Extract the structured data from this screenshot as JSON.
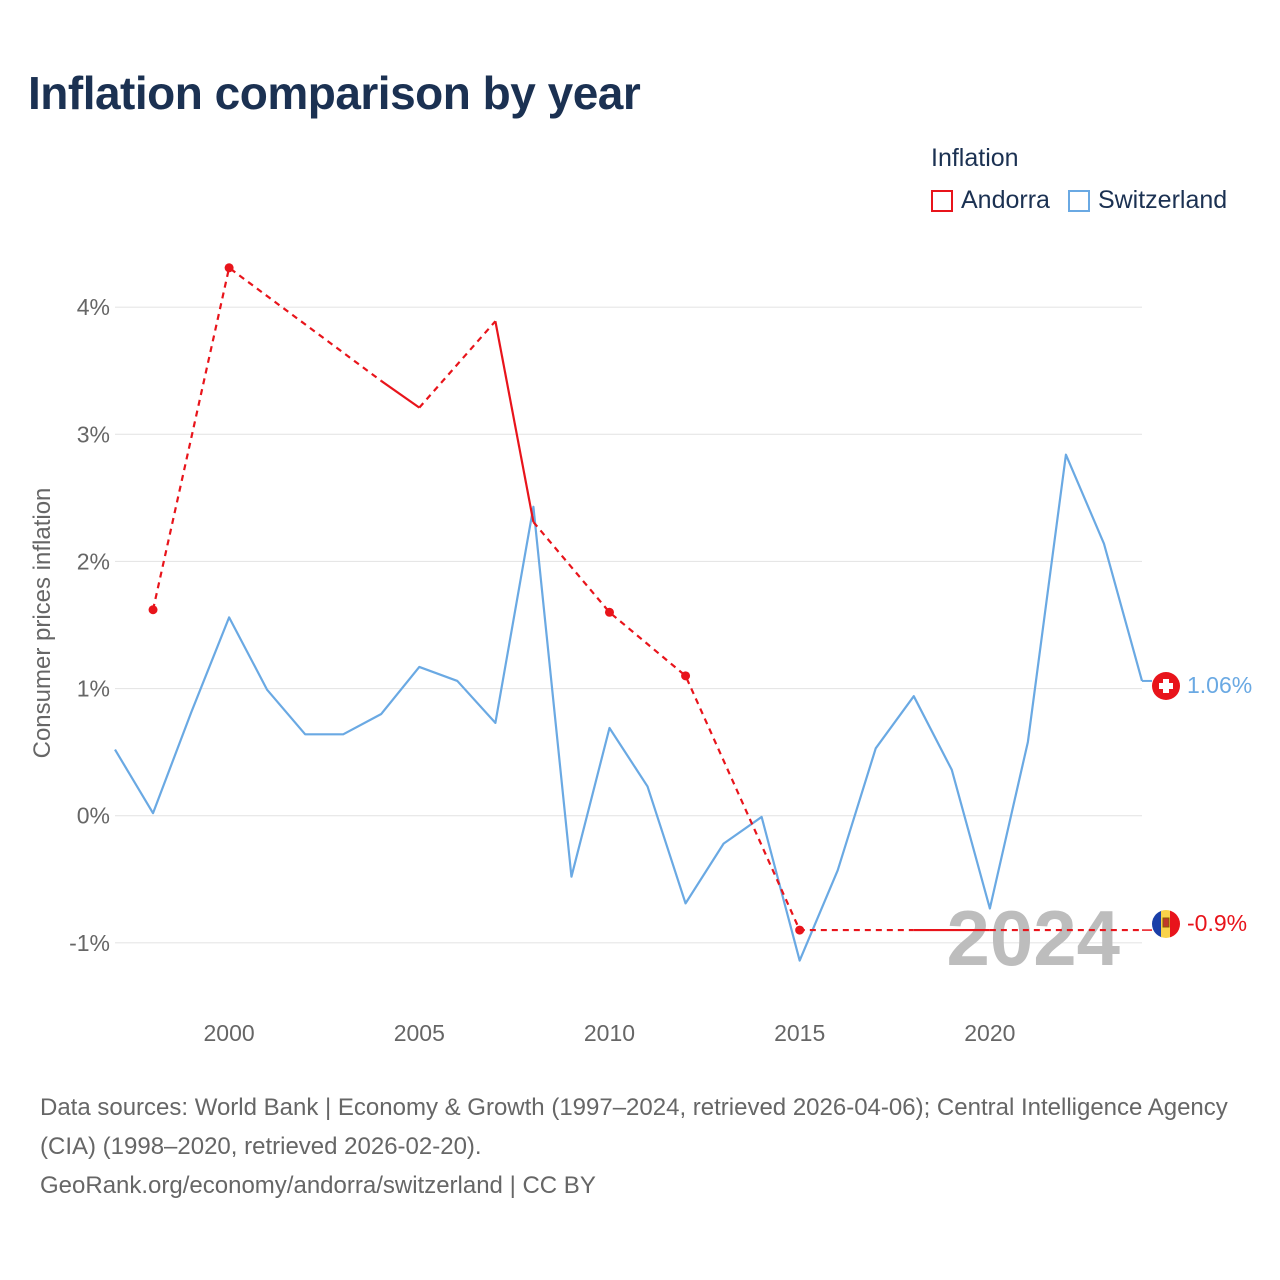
{
  "title": "Inflation comparison by year",
  "legend": {
    "title": "Inflation",
    "items": [
      {
        "label": "Andorra",
        "color": "#e8141b"
      },
      {
        "label": "Switzerland",
        "color": "#6aa9e3"
      }
    ]
  },
  "year_watermark": "2024",
  "footer": {
    "line1": "Data sources: World Bank | Economy & Growth (1997–2024, retrieved 2026-04-06); Central Intelligence Agency (CIA) (1998–2020, retrieved 2026-02-20).",
    "line2": "GeoRank.org/economy/andorra/switzerland | CC BY"
  },
  "chart_data": {
    "type": "line",
    "title": "Inflation comparison by year",
    "xlabel": "",
    "ylabel": "Consumer prices inflation",
    "xlim": [
      1997,
      2024
    ],
    "ylim": [
      -1.45,
      4.45
    ],
    "xticks": [
      2000,
      2005,
      2010,
      2015,
      2020
    ],
    "yticks": [
      {
        "value": 4,
        "label": "4%"
      },
      {
        "value": 3,
        "label": "3%"
      },
      {
        "value": 2,
        "label": "2%"
      },
      {
        "value": 1,
        "label": "1%"
      },
      {
        "value": 0,
        "label": "0%"
      },
      {
        "value": -1,
        "label": "-1%"
      }
    ],
    "grid": true,
    "series": [
      {
        "name": "Andorra",
        "color": "#e8141b",
        "end_label": "-0.9%",
        "segments": [
          {
            "style": "dashed",
            "x": [
              1998,
              2000,
              2004
            ],
            "y": [
              1.62,
              4.31,
              3.42
            ]
          },
          {
            "style": "solid",
            "x": [
              2004,
              2005
            ],
            "y": [
              3.42,
              3.21
            ]
          },
          {
            "style": "dashed",
            "x": [
              2005,
              2007
            ],
            "y": [
              3.21,
              3.89
            ]
          },
          {
            "style": "solid",
            "x": [
              2007,
              2008
            ],
            "y": [
              3.89,
              2.31
            ]
          },
          {
            "style": "dashed",
            "x": [
              2008,
              2010,
              2012,
              2015,
              2018
            ],
            "y": [
              2.31,
              1.6,
              1.1,
              -0.9,
              -0.9
            ]
          },
          {
            "style": "solid",
            "x": [
              2018,
              2020
            ],
            "y": [
              -0.9,
              -0.9
            ]
          },
          {
            "style": "dashed",
            "x": [
              2020,
              2024
            ],
            "y": [
              -0.9,
              -0.9
            ]
          }
        ],
        "markers": {
          "x": [
            1998,
            2000,
            2010,
            2012,
            2015
          ],
          "y": [
            1.62,
            4.31,
            1.6,
            1.1,
            -0.9
          ]
        }
      },
      {
        "name": "Switzerland",
        "color": "#6aa9e3",
        "end_label": "1.06%",
        "x": [
          1997,
          1998,
          1999,
          2000,
          2001,
          2002,
          2003,
          2004,
          2005,
          2006,
          2007,
          2008,
          2009,
          2010,
          2011,
          2012,
          2013,
          2014,
          2015,
          2016,
          2017,
          2018,
          2019,
          2020,
          2021,
          2022,
          2023,
          2024
        ],
        "y": [
          0.52,
          0.02,
          0.81,
          1.56,
          0.99,
          0.64,
          0.64,
          0.8,
          1.17,
          1.06,
          0.73,
          2.43,
          -0.48,
          0.69,
          0.23,
          -0.69,
          -0.22,
          -0.01,
          -1.14,
          -0.43,
          0.53,
          0.94,
          0.36,
          -0.73,
          0.58,
          2.84,
          2.14,
          1.06
        ]
      }
    ]
  }
}
